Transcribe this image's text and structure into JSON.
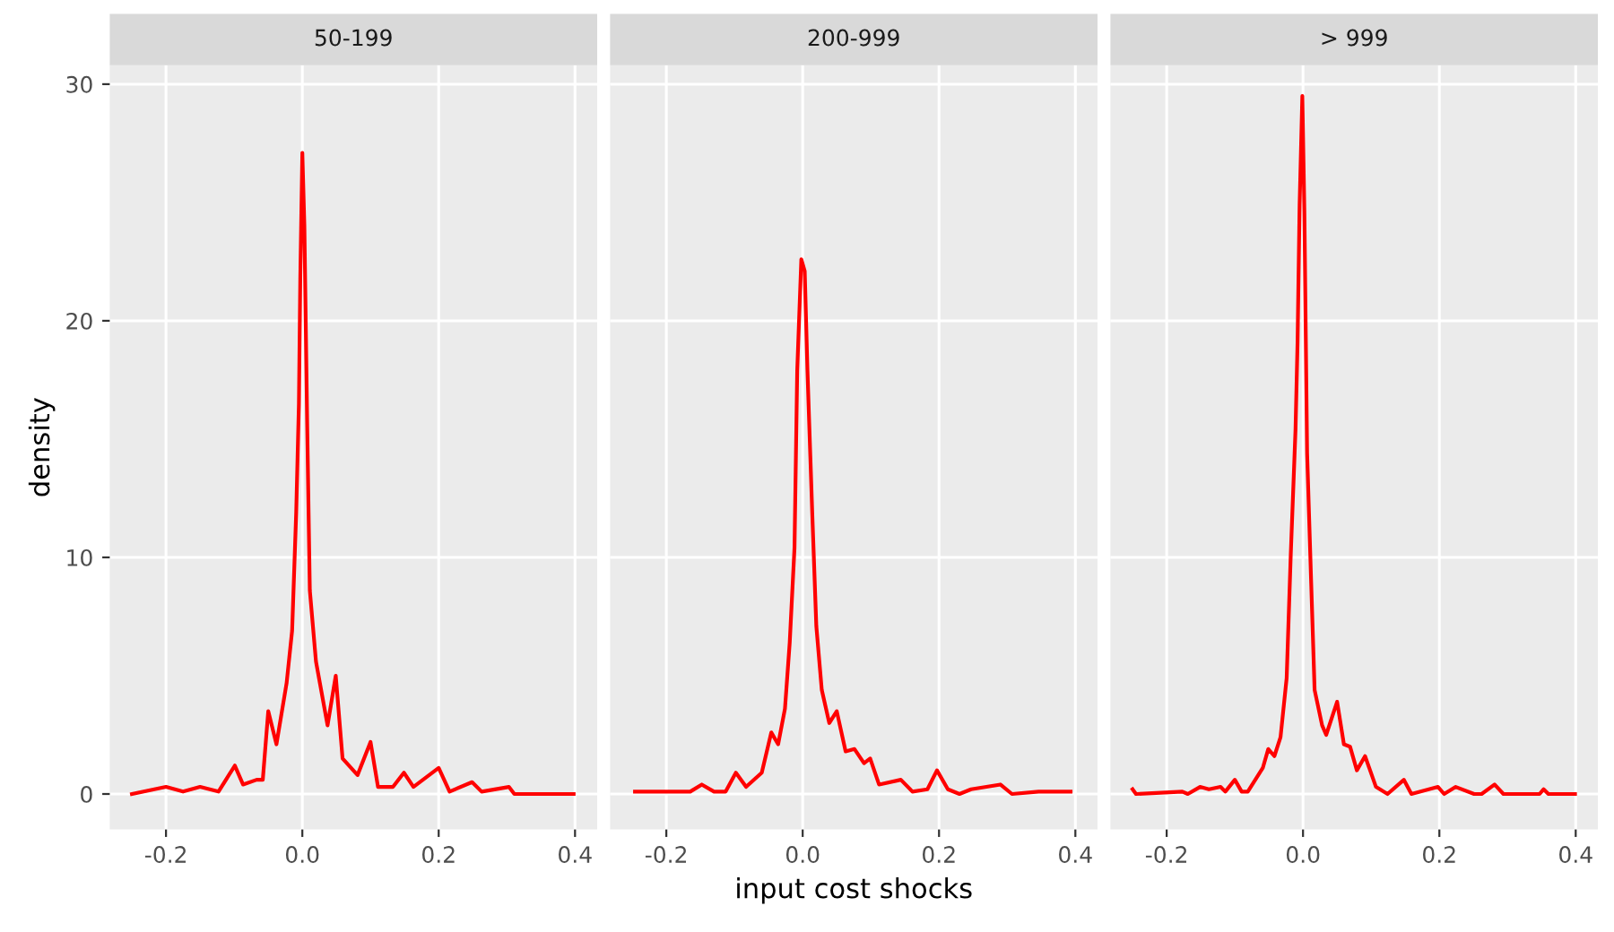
{
  "chart_data": [
    {
      "type": "line",
      "title": "50-199",
      "ylabel": "density",
      "grid": true,
      "xlim": [
        -0.2825,
        0.4325
      ],
      "ylim": [
        -1.5,
        30.8
      ],
      "xticks": [
        {
          "value": -0.2,
          "label": "-0.2"
        },
        {
          "value": 0,
          "label": "0.0"
        },
        {
          "value": 0.2,
          "label": "0.2"
        },
        {
          "value": 0.4,
          "label": "0.4"
        }
      ],
      "yticks": [
        0,
        10,
        20,
        30
      ],
      "series": [
        {
          "color": "#ff0000",
          "x": [
            -0.25,
            -0.2,
            -0.175,
            -0.15,
            -0.123,
            -0.099,
            -0.087,
            -0.067,
            -0.058,
            -0.05,
            -0.038,
            -0.023,
            -0.015,
            -0.009,
            -0.005,
            -0.003,
            0.0,
            0.003,
            0.007,
            0.011,
            0.02,
            0.037,
            0.049,
            0.059,
            0.081,
            0.1,
            0.111,
            0.133,
            0.149,
            0.163,
            0.2,
            0.216,
            0.249,
            0.263,
            0.303,
            0.311,
            0.398
          ],
          "values": [
            0,
            0.3,
            0.1,
            0.3,
            0.1,
            1.2,
            0.4,
            0.6,
            0.6,
            3.5,
            2.1,
            4.7,
            6.9,
            11.9,
            16.5,
            21.8,
            27.1,
            24,
            15.8,
            8.6,
            5.6,
            2.9,
            5.0,
            1.5,
            0.8,
            2.2,
            0.3,
            0.3,
            0.9,
            0.3,
            1.1,
            0.1,
            0.5,
            0.1,
            0.3,
            0,
            0
          ]
        }
      ]
    },
    {
      "type": "line",
      "title": "200-999",
      "xlabel": "input cost shocks",
      "grid": true,
      "xlim": [
        -0.2825,
        0.4325
      ],
      "ylim": [
        -1.5,
        30.8
      ],
      "tick_labels": "x",
      "xticks": [
        {
          "value": -0.2,
          "label": "-0.2"
        },
        {
          "value": 0,
          "label": "0.0"
        },
        {
          "value": 0.2,
          "label": "0.2"
        },
        {
          "value": 0.4,
          "label": "0.4"
        }
      ],
      "yticks": [
        0,
        10,
        20,
        30
      ],
      "series": [
        {
          "color": "#ff0000",
          "x": [
            -0.246,
            -0.165,
            -0.148,
            -0.13,
            -0.113,
            -0.098,
            -0.083,
            -0.06,
            -0.046,
            -0.036,
            -0.026,
            -0.019,
            -0.012,
            -0.008,
            -0.002,
            0.003,
            0.007,
            0.014,
            0.02,
            0.028,
            0.039,
            0.05,
            0.063,
            0.076,
            0.09,
            0.099,
            0.112,
            0.144,
            0.161,
            0.183,
            0.197,
            0.213,
            0.23,
            0.247,
            0.29,
            0.307,
            0.346,
            0.393
          ],
          "values": [
            0.1,
            0.1,
            0.4,
            0.1,
            0.1,
            0.9,
            0.3,
            0.9,
            2.6,
            2.1,
            3.6,
            6.4,
            10.4,
            17.9,
            22.6,
            22.1,
            17.9,
            11.9,
            7.1,
            4.4,
            3.0,
            3.5,
            1.8,
            1.9,
            1.3,
            1.5,
            0.4,
            0.6,
            0.1,
            0.2,
            1.0,
            0.2,
            0,
            0.2,
            0.4,
            0,
            0.1,
            0.1
          ]
        }
      ]
    },
    {
      "type": "line",
      "title": "> 999",
      "grid": true,
      "xlim": [
        -0.2825,
        0.4325
      ],
      "ylim": [
        -1.5,
        30.8
      ],
      "tick_labels": "x",
      "xticks": [
        {
          "value": -0.2,
          "label": "-0.2"
        },
        {
          "value": 0,
          "label": "0.0"
        },
        {
          "value": 0.2,
          "label": "0.2"
        },
        {
          "value": 0.4,
          "label": "0.4"
        }
      ],
      "yticks": [
        0,
        10,
        20,
        30
      ],
      "series": [
        {
          "color": "#ff0000",
          "x": [
            -0.25,
            -0.245,
            -0.177,
            -0.169,
            -0.151,
            -0.138,
            -0.121,
            -0.114,
            -0.1,
            -0.09,
            -0.081,
            -0.059,
            -0.051,
            -0.042,
            -0.033,
            -0.024,
            -0.018,
            -0.011,
            -0.008,
            -0.005,
            -0.001,
            0.002,
            0.006,
            0.012,
            0.017,
            0.028,
            0.034,
            0.05,
            0.06,
            0.069,
            0.079,
            0.091,
            0.107,
            0.124,
            0.148,
            0.159,
            0.198,
            0.207,
            0.224,
            0.251,
            0.262,
            0.281,
            0.294,
            0.347,
            0.353,
            0.36,
            0.399
          ],
          "values": [
            0.2,
            0,
            0.1,
            0,
            0.3,
            0.2,
            0.3,
            0.1,
            0.6,
            0.1,
            0.1,
            1.1,
            1.9,
            1.6,
            2.4,
            4.9,
            10.1,
            15.4,
            19.1,
            24.9,
            29.5,
            24.6,
            14.4,
            8.9,
            4.4,
            2.9,
            2.5,
            3.9,
            2.1,
            2.0,
            1.0,
            1.6,
            0.3,
            0,
            0.6,
            0,
            0.3,
            0,
            0.3,
            0,
            0,
            0.4,
            0,
            0,
            0.2,
            0,
            0
          ]
        }
      ]
    }
  ]
}
